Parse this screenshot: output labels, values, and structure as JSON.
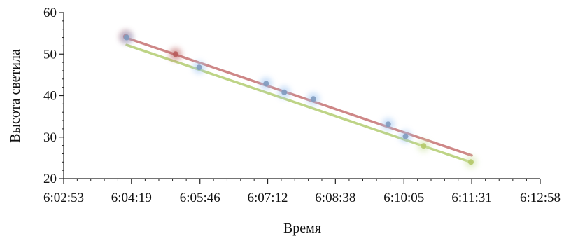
{
  "chart_data": {
    "type": "scatter",
    "title": "",
    "xlabel": "Время",
    "ylabel": "Высота светила",
    "x_ticks": [
      "6:02:53",
      "6:04:19",
      "6:05:46",
      "6:07:12",
      "6:08:38",
      "6:10:05",
      "6:11:31",
      "6:12:58"
    ],
    "y_ticks": [
      "20",
      "30",
      "40",
      "50",
      "60"
    ],
    "xlim": [
      "6:02:53",
      "6:12:58"
    ],
    "ylim": [
      20,
      60
    ],
    "grid": false,
    "series": [
      {
        "color": "#b85c5c",
        "glow": "#b85c5c",
        "points": [
          {
            "x": "6:04:12",
            "y": 54.2
          },
          {
            "x": "6:05:15",
            "y": 50.0
          }
        ]
      },
      {
        "color": "#7f9bbf",
        "glow": "#9ec5f2",
        "points": [
          {
            "x": "6:04:13",
            "y": 54.0
          },
          {
            "x": "6:05:45",
            "y": 46.8
          },
          {
            "x": "6:07:10",
            "y": 42.9
          },
          {
            "x": "6:07:33",
            "y": 40.8
          },
          {
            "x": "6:08:10",
            "y": 39.2
          },
          {
            "x": "6:09:45",
            "y": 33.1
          },
          {
            "x": "6:10:07",
            "y": 30.2
          }
        ]
      },
      {
        "color": "#b5c96a",
        "glow": "#cfe3a8",
        "points": [
          {
            "x": "6:10:30",
            "y": 27.9
          },
          {
            "x": "6:11:30",
            "y": 24.0
          }
        ]
      }
    ],
    "trendlines": [
      {
        "color": "#c97b7b",
        "from": {
          "x": "6:04:13",
          "y": 53.9
        },
        "to": {
          "x": "6:11:31",
          "y": 25.6
        }
      },
      {
        "color": "#b8d07a",
        "from": {
          "x": "6:04:13",
          "y": 52.2
        },
        "to": {
          "x": "6:11:31",
          "y": 23.9
        }
      }
    ]
  }
}
